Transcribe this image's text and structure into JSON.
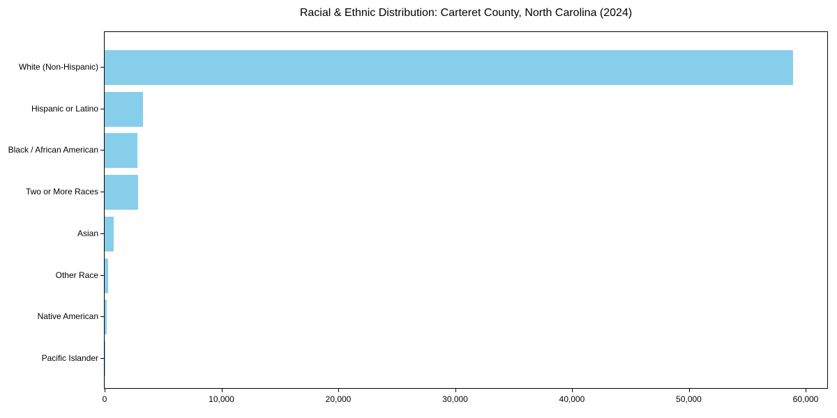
{
  "chart_data": {
    "type": "bar",
    "orientation": "horizontal",
    "title": "Racial & Ethnic Distribution: Carteret County, North Carolina (2024)",
    "xlabel": "",
    "ylabel": "",
    "categories": [
      "White (Non-Hispanic)",
      "Hispanic or Latino",
      "Black / African American",
      "Two or More Races",
      "Asian",
      "Other Race",
      "Native American",
      "Pacific Islander"
    ],
    "values": [
      58900,
      3300,
      2800,
      2850,
      750,
      300,
      150,
      40
    ],
    "xlim": [
      0,
      61850
    ],
    "x_tick_values": [
      0,
      10000,
      20000,
      30000,
      40000,
      50000,
      60000
    ],
    "x_tick_labels": [
      "0",
      "10,000",
      "20,000",
      "30,000",
      "40,000",
      "50,000",
      "60,000"
    ],
    "grid": false,
    "legend": "none",
    "bar_color": "#87CEEB",
    "text_color": "#000000",
    "background_color": "#ffffff"
  }
}
